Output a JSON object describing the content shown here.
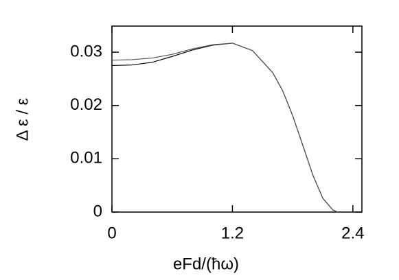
{
  "chart_data": {
    "type": "line",
    "x_label": "eFd/(ħω)",
    "y_label": "Δ ε / ε",
    "x": [
      0,
      0.2,
      0.4,
      0.6,
      0.8,
      1.0,
      1.2,
      1.4,
      1.6,
      1.7,
      1.8,
      1.9,
      2.0,
      2.1,
      2.2,
      2.25
    ],
    "series": [
      {
        "color": "#000000",
        "values": [
          0.0275,
          0.0276,
          0.0281,
          0.0292,
          0.0304,
          0.0313,
          0.0317,
          0.0303,
          0.0262,
          0.0228,
          0.0181,
          0.0126,
          0.007,
          0.0026,
          0.0004,
          0
        ]
      },
      {
        "color": "#555555",
        "values": [
          0.0285,
          0.0286,
          0.0289,
          0.0296,
          0.0306,
          0.0314,
          0.0317,
          0.0303,
          0.0262,
          0.0228,
          0.0181,
          0.0126,
          0.007,
          0.0026,
          0.0004,
          0
        ]
      }
    ],
    "xlim": [
      0,
      2.49
    ],
    "ylim": [
      0,
      0.0349
    ],
    "xticks": [
      0,
      1.2,
      2.4
    ],
    "yticks": [
      0,
      0.01,
      0.02,
      0.03
    ],
    "grid": false
  }
}
